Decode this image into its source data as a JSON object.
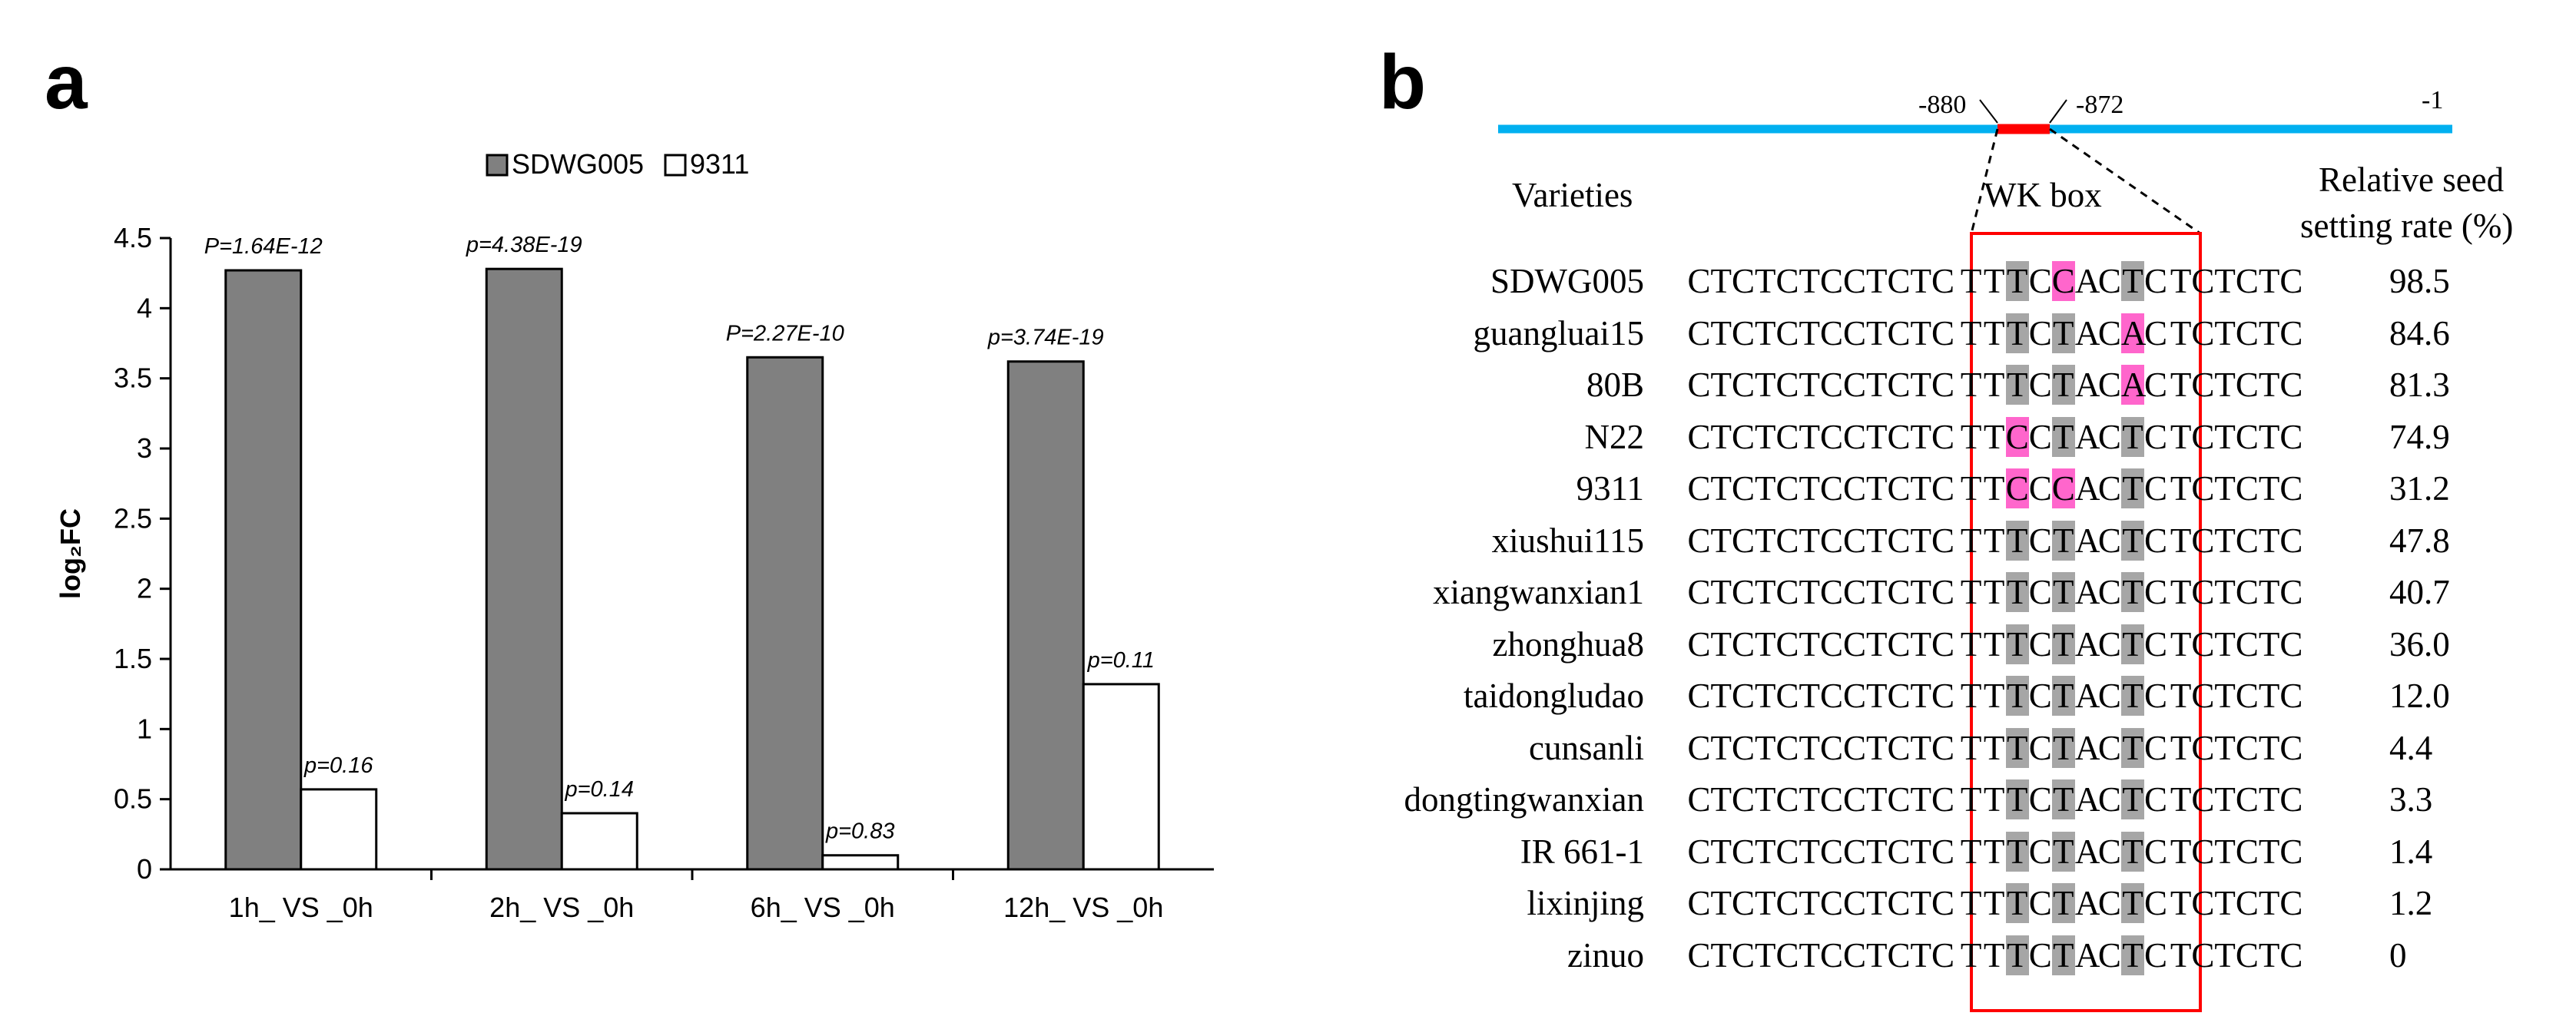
{
  "panel_a": {
    "letter": "a",
    "chart_data": {
      "type": "bar",
      "title": "",
      "xlabel": "",
      "ylabel": "log₂FC",
      "ylim": [
        0,
        4.5
      ],
      "yticks": [
        "0",
        "0.5",
        "1",
        "1.5",
        "2",
        "2.5",
        "3",
        "3.5",
        "4",
        "4.5"
      ],
      "categories": [
        "1h_ VS _0h",
        "2h_ VS _0h",
        "6h_ VS _0h",
        "12h_ VS _0h"
      ],
      "series": [
        {
          "name": "SDWG005",
          "color": "#808080",
          "values": [
            4.27,
            4.28,
            3.65,
            3.62
          ],
          "labels": [
            "P=1.64E-12",
            "p=4.38E-19",
            "P=2.27E-10",
            "p=3.74E-19"
          ]
        },
        {
          "name": "9311",
          "color": "#ffffff",
          "values": [
            0.57,
            0.4,
            0.1,
            1.32
          ],
          "labels": [
            "p=0.16",
            "p=0.14",
            "p=0.83",
            "p=0.11"
          ]
        }
      ],
      "legend": "top-center"
    }
  },
  "panel_b": {
    "letter": "b",
    "promoter": {
      "left_pos": "-880",
      "right_pos": "-872",
      "end_pos": "-1",
      "line_color": "#00b0f0",
      "box_color": "#ff0000"
    },
    "headers": {
      "varieties": "Varieties",
      "wk_box": "WK box",
      "rate_line1": "Relative seed",
      "rate_line2": "setting rate (%)"
    },
    "rows": [
      {
        "variety": "SDWG005",
        "seq": [
          "CTCTCTCCTCTC",
          "T",
          "T",
          "T",
          "C",
          "C",
          "A",
          "C",
          "T",
          "C",
          "TCTCTC"
        ],
        "marks": [
          "",
          "",
          "",
          "g",
          "",
          "p",
          "",
          "",
          "g",
          "",
          ""
        ],
        "rate": "98.5"
      },
      {
        "variety": "guangluai15",
        "seq": [
          "CTCTCTCCTCTC",
          "T",
          "T",
          "T",
          "C",
          "T",
          "A",
          "C",
          "A",
          "C",
          "TCTCTC"
        ],
        "marks": [
          "",
          "",
          "",
          "g",
          "",
          "g",
          "",
          "",
          "p",
          "",
          ""
        ],
        "rate": "84.6"
      },
      {
        "variety": "80B",
        "seq": [
          "CTCTCTCCTCTC",
          "T",
          "T",
          "T",
          "C",
          "T",
          "A",
          "C",
          "A",
          "C",
          "TCTCTC"
        ],
        "marks": [
          "",
          "",
          "",
          "g",
          "",
          "g",
          "",
          "",
          "p",
          "",
          ""
        ],
        "rate": "81.3"
      },
      {
        "variety": "N22",
        "seq": [
          "CTCTCTCCTCTC",
          "T",
          "T",
          "C",
          "C",
          "T",
          "A",
          "C",
          "T",
          "C",
          "TCTCTC"
        ],
        "marks": [
          "",
          "",
          "",
          "p",
          "",
          "g",
          "",
          "",
          "g",
          "",
          ""
        ],
        "rate": "74.9"
      },
      {
        "variety": "9311",
        "seq": [
          "CTCTCTCCTCTC",
          "T",
          "T",
          "C",
          "C",
          "C",
          "A",
          "C",
          "T",
          "C",
          "TCTCTC"
        ],
        "marks": [
          "",
          "",
          "",
          "p",
          "",
          "p",
          "",
          "",
          "g",
          "",
          ""
        ],
        "rate": "31.2"
      },
      {
        "variety": "xiushui115",
        "seq": [
          "CTCTCTCCTCTC",
          "T",
          "T",
          "T",
          "C",
          "T",
          "A",
          "C",
          "T",
          "C",
          "TCTCTC"
        ],
        "marks": [
          "",
          "",
          "",
          "g",
          "",
          "g",
          "",
          "",
          "g",
          "",
          ""
        ],
        "rate": "47.8"
      },
      {
        "variety": "xiangwanxian1",
        "seq": [
          "CTCTCTCCTCTC",
          "T",
          "T",
          "T",
          "C",
          "T",
          "A",
          "C",
          "T",
          "C",
          "TCTCTC"
        ],
        "marks": [
          "",
          "",
          "",
          "g",
          "",
          "g",
          "",
          "",
          "g",
          "",
          ""
        ],
        "rate": "40.7"
      },
      {
        "variety": "zhonghua8",
        "seq": [
          "CTCTCTCCTCTC",
          "T",
          "T",
          "T",
          "C",
          "T",
          "A",
          "C",
          "T",
          "C",
          "TCTCTC"
        ],
        "marks": [
          "",
          "",
          "",
          "g",
          "",
          "g",
          "",
          "",
          "g",
          "",
          ""
        ],
        "rate": "36.0"
      },
      {
        "variety": "taidongludao",
        "seq": [
          "CTCTCTCCTCTC",
          "T",
          "T",
          "T",
          "C",
          "T",
          "A",
          "C",
          "T",
          "C",
          "TCTCTC"
        ],
        "marks": [
          "",
          "",
          "",
          "g",
          "",
          "g",
          "",
          "",
          "g",
          "",
          ""
        ],
        "rate": "12.0"
      },
      {
        "variety": "cunsanli",
        "seq": [
          "CTCTCTCCTCTC",
          "T",
          "T",
          "T",
          "C",
          "T",
          "A",
          "C",
          "T",
          "C",
          "TCTCTC"
        ],
        "marks": [
          "",
          "",
          "",
          "g",
          "",
          "g",
          "",
          "",
          "g",
          "",
          ""
        ],
        "rate": "4.4"
      },
      {
        "variety": "dongtingwanxian",
        "seq": [
          "CTCTCTCCTCTC",
          "T",
          "T",
          "T",
          "C",
          "T",
          "A",
          "C",
          "T",
          "C",
          "TCTCTC"
        ],
        "marks": [
          "",
          "",
          "",
          "g",
          "",
          "g",
          "",
          "",
          "g",
          "",
          ""
        ],
        "rate": "3.3"
      },
      {
        "variety": "IR 661-1",
        "seq": [
          "CTCTCTCCTCTC",
          "T",
          "T",
          "T",
          "C",
          "T",
          "A",
          "C",
          "T",
          "C",
          "TCTCTC"
        ],
        "marks": [
          "",
          "",
          "",
          "g",
          "",
          "g",
          "",
          "",
          "g",
          "",
          ""
        ],
        "rate": "1.4"
      },
      {
        "variety": "lixinjing",
        "seq": [
          "CTCTCTCCTCTC",
          "T",
          "T",
          "T",
          "C",
          "T",
          "A",
          "C",
          "T",
          "C",
          "TCTCTC"
        ],
        "marks": [
          "",
          "",
          "",
          "g",
          "",
          "g",
          "",
          "",
          "g",
          "",
          ""
        ],
        "rate": "1.2"
      },
      {
        "variety": "zinuo",
        "seq": [
          "CTCTCTCCTCTC",
          "T",
          "T",
          "T",
          "C",
          "T",
          "A",
          "C",
          "T",
          "C",
          "TCTCTC"
        ],
        "marks": [
          "",
          "",
          "",
          "g",
          "",
          "g",
          "",
          "",
          "g",
          "",
          ""
        ],
        "rate": "0"
      }
    ]
  }
}
